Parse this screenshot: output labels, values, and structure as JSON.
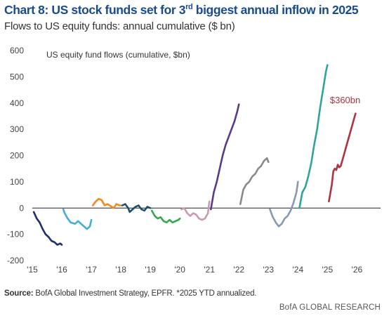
{
  "header": {
    "title_prefix": "Chart 8: US stock funds set for 3",
    "title_sup": "rd",
    "title_suffix": " biggest annual inflow in 2025",
    "subtitle": "Flows to US equity funds: annual cumulative ($ bn)"
  },
  "footer": {
    "source_label": "Source:",
    "source_text": " BofA Global Investment Strategy, EPFR. *2025 YTD annualized.",
    "brand": "BofA GLOBAL RESEARCH"
  },
  "chart_data": {
    "type": "line",
    "title": "Chart 8: US stock funds set for 3rd biggest annual inflow in 2025",
    "subtitle": "Flows to US equity funds: annual cumulative ($ bn)",
    "inner_label": "US equity fund flows (cumulative, $bn)",
    "xlabel": "",
    "ylabel": "",
    "xlim": [
      2015,
      2026.8
    ],
    "ylim": [
      -200,
      600
    ],
    "y_ticks": [
      -200,
      -100,
      0,
      100,
      200,
      300,
      400,
      500,
      600
    ],
    "x_ticks": [
      2015,
      2016,
      2017,
      2018,
      2019,
      2020,
      2021,
      2022,
      2023,
      2024,
      2025,
      2026
    ],
    "x_tick_labels": [
      "'15",
      "'16",
      "'17",
      "'18",
      "'19",
      "'20",
      "'21",
      "'22",
      "'23",
      "'24",
      "'25",
      "'26"
    ],
    "zero_line": true,
    "grid": false,
    "annotations": [
      {
        "text": "$360bn",
        "x": 2025.6,
        "y": 400,
        "color": "#b0313f"
      }
    ],
    "series": [
      {
        "color": "#1f2f6b",
        "points": [
          [
            2015.05,
            -15
          ],
          [
            2015.15,
            -40
          ],
          [
            2015.25,
            -55
          ],
          [
            2015.35,
            -80
          ],
          [
            2015.45,
            -100
          ],
          [
            2015.55,
            -110
          ],
          [
            2015.65,
            -125
          ],
          [
            2015.75,
            -130
          ],
          [
            2015.85,
            -140
          ],
          [
            2015.95,
            -135
          ],
          [
            2016.0,
            -140
          ]
        ]
      },
      {
        "color": "#45aed6",
        "points": [
          [
            2016.05,
            -5
          ],
          [
            2016.1,
            -20
          ],
          [
            2016.2,
            -40
          ],
          [
            2016.3,
            -55
          ],
          [
            2016.45,
            -60
          ],
          [
            2016.55,
            -50
          ],
          [
            2016.65,
            -60
          ],
          [
            2016.75,
            -70
          ],
          [
            2016.85,
            -80
          ],
          [
            2016.95,
            -70
          ],
          [
            2017.0,
            -45
          ]
        ]
      },
      {
        "color": "#f08a1f",
        "points": [
          [
            2017.05,
            10
          ],
          [
            2017.15,
            25
          ],
          [
            2017.25,
            35
          ],
          [
            2017.35,
            30
          ],
          [
            2017.45,
            10
          ],
          [
            2017.55,
            15
          ],
          [
            2017.65,
            8
          ],
          [
            2017.75,
            0
          ],
          [
            2017.85,
            15
          ],
          [
            2017.95,
            10
          ],
          [
            2018.0,
            10
          ]
        ]
      },
      {
        "color": "#1f4f6b",
        "points": [
          [
            2018.05,
            10
          ],
          [
            2018.15,
            15
          ],
          [
            2018.25,
            0
          ],
          [
            2018.3,
            -15
          ],
          [
            2018.4,
            -5
          ],
          [
            2018.5,
            5
          ],
          [
            2018.6,
            10
          ],
          [
            2018.7,
            -5
          ],
          [
            2018.8,
            -10
          ],
          [
            2018.9,
            5
          ],
          [
            2019.0,
            0
          ]
        ]
      },
      {
        "color": "#34a84a",
        "points": [
          [
            2019.05,
            -10
          ],
          [
            2019.15,
            -30
          ],
          [
            2019.25,
            -40
          ],
          [
            2019.35,
            -35
          ],
          [
            2019.45,
            -50
          ],
          [
            2019.55,
            -55
          ],
          [
            2019.65,
            -45
          ],
          [
            2019.75,
            -55
          ],
          [
            2019.85,
            -50
          ],
          [
            2019.95,
            -45
          ],
          [
            2020.0,
            -40
          ]
        ]
      },
      {
        "color": "#c99bb0",
        "points": [
          [
            2020.05,
            -5
          ],
          [
            2020.15,
            0
          ],
          [
            2020.25,
            -20
          ],
          [
            2020.35,
            -30
          ],
          [
            2020.45,
            -20
          ],
          [
            2020.55,
            -25
          ],
          [
            2020.65,
            -40
          ],
          [
            2020.75,
            -45
          ],
          [
            2020.85,
            -40
          ],
          [
            2020.95,
            -20
          ],
          [
            2021.0,
            25
          ]
        ]
      },
      {
        "color": "#5a3a8c",
        "points": [
          [
            2021.05,
            -5
          ],
          [
            2021.15,
            60
          ],
          [
            2021.25,
            100
          ],
          [
            2021.35,
            150
          ],
          [
            2021.45,
            200
          ],
          [
            2021.55,
            240
          ],
          [
            2021.65,
            270
          ],
          [
            2021.75,
            300
          ],
          [
            2021.85,
            330
          ],
          [
            2021.95,
            370
          ],
          [
            2022.0,
            395
          ]
        ]
      },
      {
        "color": "#8a8a8a",
        "points": [
          [
            2022.05,
            15
          ],
          [
            2022.15,
            70
          ],
          [
            2022.25,
            90
          ],
          [
            2022.35,
            100
          ],
          [
            2022.45,
            120
          ],
          [
            2022.55,
            130
          ],
          [
            2022.65,
            150
          ],
          [
            2022.75,
            160
          ],
          [
            2022.85,
            180
          ],
          [
            2022.95,
            190
          ],
          [
            2023.0,
            175
          ]
        ]
      },
      {
        "color": "#8a96b8",
        "points": [
          [
            2023.05,
            -5
          ],
          [
            2023.15,
            -35
          ],
          [
            2023.25,
            -55
          ],
          [
            2023.35,
            -70
          ],
          [
            2023.45,
            -60
          ],
          [
            2023.55,
            -40
          ],
          [
            2023.65,
            -30
          ],
          [
            2023.75,
            -10
          ],
          [
            2023.85,
            20
          ],
          [
            2023.95,
            60
          ],
          [
            2024.0,
            100
          ]
        ]
      },
      {
        "color": "#2fa59a",
        "points": [
          [
            2024.05,
            0
          ],
          [
            2024.15,
            60
          ],
          [
            2024.25,
            80
          ],
          [
            2024.35,
            120
          ],
          [
            2024.45,
            170
          ],
          [
            2024.55,
            240
          ],
          [
            2024.65,
            300
          ],
          [
            2024.75,
            380
          ],
          [
            2024.85,
            450
          ],
          [
            2024.95,
            520
          ],
          [
            2025.0,
            545
          ]
        ]
      },
      {
        "color": "#b0313f",
        "points": [
          [
            2025.05,
            25
          ],
          [
            2025.15,
            90
          ],
          [
            2025.2,
            140
          ],
          [
            2025.25,
            150
          ],
          [
            2025.3,
            145
          ],
          [
            2025.35,
            165
          ],
          [
            2025.4,
            155
          ],
          [
            2025.45,
            160
          ],
          [
            2025.55,
            200
          ],
          [
            2025.65,
            240
          ],
          [
            2025.75,
            280
          ],
          [
            2025.85,
            320
          ],
          [
            2025.95,
            360
          ]
        ]
      }
    ]
  }
}
